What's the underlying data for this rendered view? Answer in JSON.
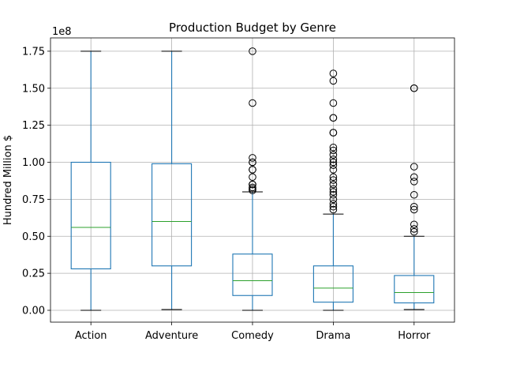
{
  "chart_data": {
    "type": "box",
    "title": "Production Budget by Genre",
    "ylabel": "Hundred Million $",
    "xlabel": "",
    "y_offset_label": "1e8",
    "ylim": [
      -0.08,
      1.84
    ],
    "yticks": [
      0.0,
      0.25,
      0.5,
      0.75,
      1.0,
      1.25,
      1.5,
      1.75
    ],
    "ytick_labels": [
      "0.00",
      "0.25",
      "0.50",
      "0.75",
      "1.00",
      "1.25",
      "1.50",
      "1.75"
    ],
    "grid": true,
    "colors": {
      "box": "#1f77b4",
      "median": "#2ca02c",
      "whisker": "#1f77b4",
      "cap": "#000000",
      "flier": "#000000",
      "grid": "#b0b0b0"
    },
    "categories": [
      "Action",
      "Adventure",
      "Comedy",
      "Drama",
      "Horror"
    ],
    "boxes": [
      {
        "category": "Action",
        "whislo": 0.0,
        "q1": 0.28,
        "median": 0.56,
        "q3": 1.0,
        "whishi": 1.75,
        "fliers": []
      },
      {
        "category": "Adventure",
        "whislo": 0.005,
        "q1": 0.3,
        "median": 0.6,
        "q3": 0.99,
        "whishi": 1.75,
        "fliers": []
      },
      {
        "category": "Comedy",
        "whislo": 0.0,
        "q1": 0.1,
        "median": 0.2,
        "q3": 0.38,
        "whishi": 0.8,
        "fliers": [
          1.75,
          1.4,
          1.03,
          1.0,
          1.0,
          0.95,
          0.95,
          0.9,
          0.85,
          0.85,
          0.83,
          0.82,
          0.81
        ]
      },
      {
        "category": "Drama",
        "whislo": 0.0,
        "q1": 0.055,
        "median": 0.15,
        "q3": 0.3,
        "whishi": 0.65,
        "fliers": [
          1.6,
          1.55,
          1.4,
          1.3,
          1.3,
          1.2,
          1.2,
          1.1,
          1.08,
          1.05,
          1.02,
          1.0,
          0.98,
          0.95,
          0.9,
          0.88,
          0.85,
          0.82,
          0.8,
          0.78,
          0.75,
          0.72,
          0.7,
          0.68
        ]
      },
      {
        "category": "Horror",
        "whislo": 0.005,
        "q1": 0.05,
        "median": 0.12,
        "q3": 0.235,
        "whishi": 0.5,
        "fliers": [
          1.5,
          1.5,
          0.97,
          0.9,
          0.87,
          0.78,
          0.7,
          0.68,
          0.58,
          0.55,
          0.53
        ]
      }
    ]
  }
}
